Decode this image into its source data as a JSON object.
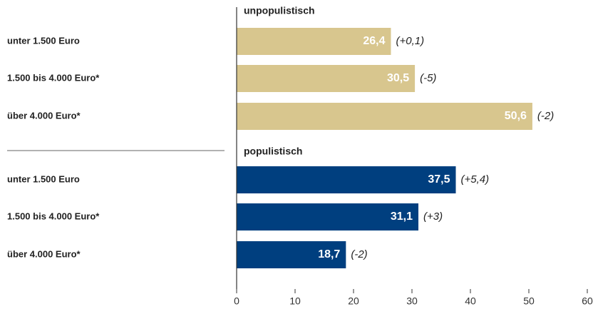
{
  "chart_data": {
    "type": "bar",
    "orientation": "horizontal",
    "categories": [
      "unter 1.500 Euro",
      "1.500 bis 4.000 Euro*",
      "über 4.000 Euro*"
    ],
    "series": [
      {
        "name": "unpopulistisch",
        "color": "#d8c68e",
        "label_color": "#c9b577",
        "values": [
          26.4,
          30.5,
          50.6
        ],
        "value_labels": [
          "26,4",
          "30,5",
          "50,6"
        ],
        "changes": [
          "(+0,1)",
          "(-5)",
          "(-2)"
        ]
      },
      {
        "name": "populistisch",
        "color": "#003f7f",
        "label_color": "#1f4e8c",
        "values": [
          37.5,
          31.1,
          18.7
        ],
        "value_labels": [
          "37,5",
          "31,1",
          "18,7"
        ],
        "changes": [
          "(+5,4)",
          "(+3)",
          "(-2)"
        ]
      }
    ],
    "xlim": [
      0,
      60
    ],
    "xticks": [
      0,
      10,
      20,
      30,
      40,
      50,
      60
    ]
  }
}
